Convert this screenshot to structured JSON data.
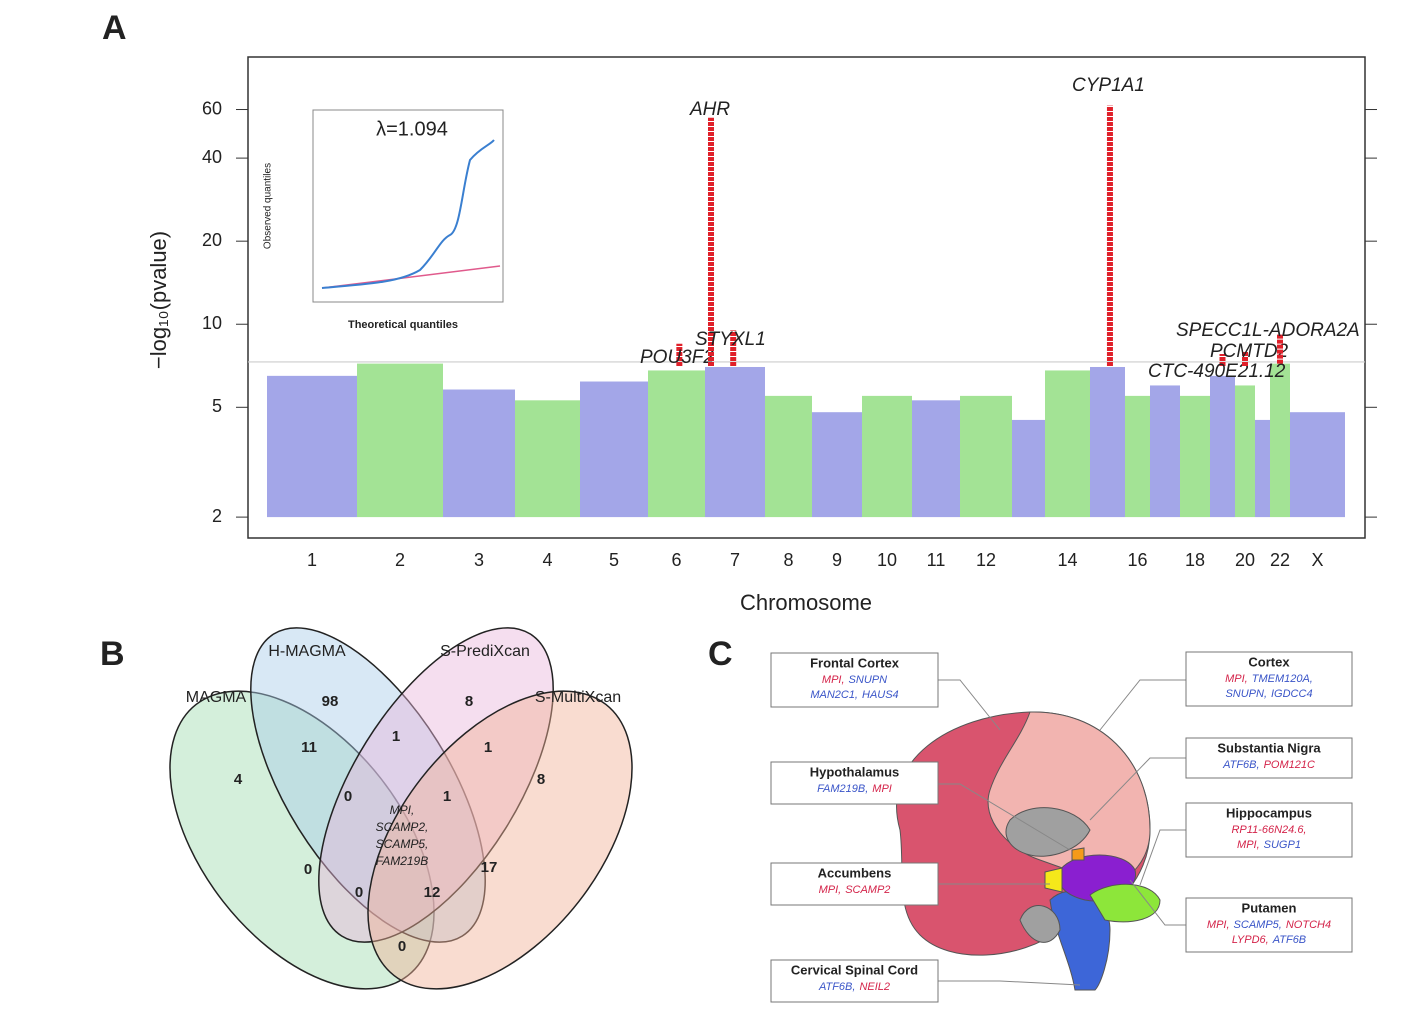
{
  "panel_labels": [
    "A",
    "B",
    "C"
  ],
  "chart_data": {
    "type": "manhattan",
    "ylabel": "−log₁₀(pvalue)",
    "xlabel": "Chromosome",
    "yscale": "log",
    "ylim": [
      1.68,
      93
    ],
    "yticks": [
      2,
      5,
      10,
      20,
      40,
      60
    ],
    "categories": [
      "1",
      "2",
      "3",
      "4",
      "5",
      "6",
      "7",
      "8",
      "9",
      "10",
      "11",
      "12",
      null,
      "14",
      null,
      "16",
      null,
      "18",
      null,
      "20",
      null,
      "22",
      "X"
    ],
    "values": [
      6.5,
      7.2,
      5.8,
      5.3,
      6.2,
      6.8,
      7.0,
      5.5,
      4.8,
      5.5,
      5.3,
      5.5,
      4.5,
      6.8,
      7.0,
      5.5,
      6.0,
      5.5,
      6.5,
      6.0,
      4.5,
      7.2,
      4.8
    ],
    "colors": [
      "#a3a6e8",
      "#a3e395"
    ],
    "threshold": 7.3,
    "threshold_color": "#cccccc",
    "hits": {
      "names": [
        "POU3F2",
        "AHR",
        "STYXL1",
        "CYP1A1",
        "CTC-490E21.12",
        "PCMTD2",
        "SPECC1L-ADORA2A"
      ],
      "chromosome": [
        6,
        7,
        7,
        15,
        19,
        20,
        22
      ],
      "values": [
        8.5,
        56,
        9.5,
        62,
        7.8,
        8,
        9.2
      ],
      "color": "#e0202a"
    },
    "inset": {
      "title": "λ=1.094",
      "xlabel": "Theoretical quantiles",
      "ylabel": "Observed quantiles"
    }
  },
  "venn": {
    "sets": [
      "MAGMA",
      "H-MAGMA",
      "S-PrediXcan",
      "S-MultiXcan"
    ],
    "set_colors": [
      "#9fdcb0",
      "#a9cce8",
      "#e8b6dc",
      "#f2b196"
    ],
    "regions": [
      98,
      8,
      11,
      1,
      1,
      4,
      8,
      0,
      1,
      0,
      17,
      0,
      12,
      0
    ],
    "center": [
      "MPI,",
      "SCAMP2,",
      "SCAMP5,",
      "FAM219B"
    ]
  },
  "brain": {
    "gene_colors": {
      "r": "#d4244a",
      "b": "#3a55c8"
    },
    "regions": [
      {
        "title": "Frontal Cortex",
        "lines": [
          [
            [
              "MPI,",
              "r"
            ],
            [
              "SNUPN",
              "b"
            ]
          ],
          [
            [
              "MAN2C1,",
              "b"
            ],
            [
              "HAUS4",
              "b"
            ]
          ]
        ]
      },
      {
        "title": "Cortex",
        "lines": [
          [
            [
              "MPI,",
              "r"
            ],
            [
              "TMEM120A,",
              "b"
            ]
          ],
          [
            [
              "SNUPN,",
              "b"
            ],
            [
              "IGDCC4",
              "b"
            ]
          ]
        ]
      },
      {
        "title": "Substantia Nigra",
        "lines": [
          [
            [
              "ATF6B,",
              "b"
            ],
            [
              "POM121C",
              "r"
            ]
          ]
        ]
      },
      {
        "title": "Hypothalamus",
        "lines": [
          [
            [
              "FAM219B,",
              "b"
            ],
            [
              "MPI",
              "r"
            ]
          ]
        ]
      },
      {
        "title": "Hippocampus",
        "lines": [
          [
            [
              "RP11-66N24.6,",
              "r"
            ]
          ],
          [
            [
              "MPI,",
              "r"
            ],
            [
              "SUGP1",
              "b"
            ]
          ]
        ]
      },
      {
        "title": "Accumbens",
        "lines": [
          [
            [
              "MPI,",
              "r"
            ],
            [
              "SCAMP2",
              "r"
            ]
          ]
        ]
      },
      {
        "title": "Putamen",
        "lines": [
          [
            [
              "MPI,",
              "r"
            ],
            [
              "SCAMP5,",
              "b"
            ],
            [
              "NOTCH4",
              "r"
            ]
          ],
          [
            [
              "LYPD6,",
              "r"
            ],
            [
              "ATF6B",
              "b"
            ]
          ]
        ]
      },
      {
        "title": "Cervical Spinal Cord",
        "lines": [
          [
            [
              "ATF6B,",
              "b"
            ],
            [
              "NEIL2",
              "r"
            ]
          ]
        ]
      }
    ]
  }
}
